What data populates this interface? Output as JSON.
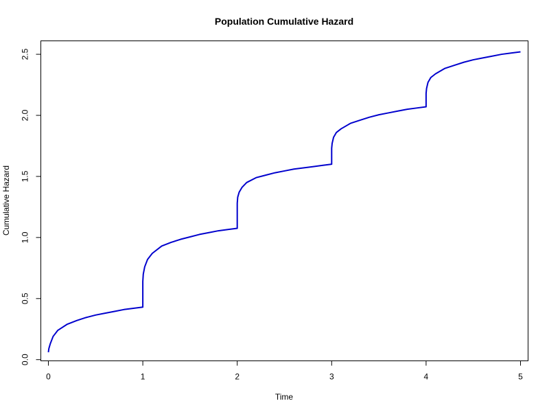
{
  "chart_data": {
    "type": "line",
    "title": "Population Cumulative Hazard",
    "xlabel": "Time",
    "ylabel": "Cumulative Hazard",
    "xlim": [
      -0.08,
      5.08
    ],
    "ylim": [
      -0.01,
      2.61
    ],
    "xticks": [
      0,
      1,
      2,
      3,
      4,
      5
    ],
    "xtick_labels": [
      "0",
      "1",
      "2",
      "3",
      "4",
      "5"
    ],
    "yticks": [
      0.0,
      0.5,
      1.0,
      1.5,
      2.0,
      2.5
    ],
    "ytick_labels": [
      "0.0",
      "0.5",
      "1.0",
      "1.5",
      "2.0",
      "2.5"
    ],
    "grid": false,
    "line_color": "#0000cd",
    "series": [
      {
        "x": [
          0.0,
          0.005,
          0.02,
          0.05,
          0.1,
          0.2,
          0.3,
          0.4,
          0.5,
          0.6,
          0.7,
          0.8,
          0.9,
          1.0,
          1.0,
          1.005,
          1.02,
          1.05,
          1.1,
          1.2,
          1.3,
          1.4,
          1.5,
          1.6,
          1.7,
          1.8,
          1.9,
          2.0,
          2.0,
          2.005,
          2.02,
          2.05,
          2.1,
          2.2,
          2.3,
          2.4,
          2.5,
          2.6,
          2.7,
          2.8,
          2.9,
          3.0,
          3.0,
          3.005,
          3.02,
          3.05,
          3.1,
          3.2,
          3.3,
          3.4,
          3.5,
          3.6,
          3.7,
          3.8,
          3.9,
          4.0,
          4.0,
          4.005,
          4.02,
          4.05,
          4.1,
          4.2,
          4.3,
          4.4,
          4.5,
          4.6,
          4.7,
          4.8,
          4.9,
          5.0
        ],
        "y": [
          0.06,
          0.09,
          0.13,
          0.19,
          0.24,
          0.29,
          0.32,
          0.345,
          0.365,
          0.38,
          0.395,
          0.41,
          0.42,
          0.43,
          0.64,
          0.7,
          0.76,
          0.82,
          0.87,
          0.93,
          0.96,
          0.985,
          1.005,
          1.025,
          1.04,
          1.055,
          1.065,
          1.075,
          1.28,
          1.33,
          1.37,
          1.41,
          1.45,
          1.49,
          1.51,
          1.53,
          1.545,
          1.56,
          1.57,
          1.58,
          1.59,
          1.6,
          1.73,
          1.77,
          1.82,
          1.86,
          1.89,
          1.935,
          1.96,
          1.985,
          2.005,
          2.02,
          2.035,
          2.05,
          2.06,
          2.07,
          2.18,
          2.22,
          2.27,
          2.31,
          2.34,
          2.385,
          2.41,
          2.435,
          2.455,
          2.47,
          2.485,
          2.5,
          2.51,
          2.52
        ]
      }
    ]
  }
}
